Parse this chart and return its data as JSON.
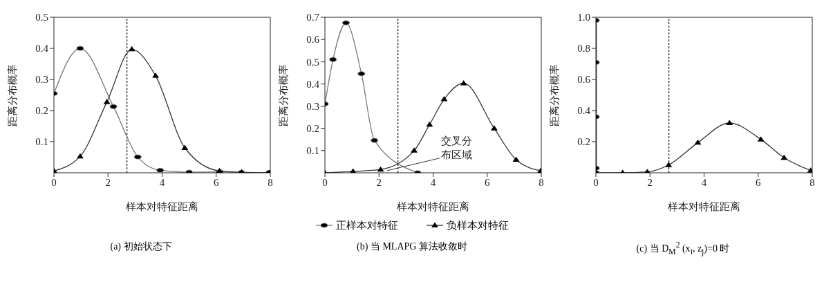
{
  "chart_data": [
    {
      "type": "line",
      "title": "(a) 初始状态下",
      "xlabel": "样本对特征距离",
      "ylabel": "距离分布概率",
      "xlim": [
        0,
        8
      ],
      "xticks": [
        0,
        2,
        4,
        6,
        8
      ],
      "ylim": [
        0,
        0.5
      ],
      "yticks": [
        0.1,
        0.2,
        0.3,
        0.4,
        0.5
      ],
      "legend": false,
      "ref_lines": [
        {
          "axis": "x",
          "value": 2.7,
          "line_style": "dashed"
        }
      ],
      "series": [
        {
          "color": "#777777",
          "marker": "circle",
          "x": [
            0,
            0.97,
            2.2,
            3.1,
            3.93,
            5.0,
            6.14,
            6.93,
            7.96
          ],
          "values": [
            0.255,
            0.4,
            0.213,
            0.051,
            0.008,
            0.002,
            0.003,
            0.001,
            0.001
          ]
        },
        {
          "color": "#333333",
          "marker": "triangle",
          "x": [
            0,
            0.97,
            1.96,
            2.88,
            3.76,
            4.84,
            6.12,
            6.94,
            7.96
          ],
          "values": [
            0.006,
            0.053,
            0.228,
            0.397,
            0.312,
            0.08,
            0.006,
            0.002,
            0
          ]
        }
      ]
    },
    {
      "type": "line",
      "title": "(b) 当 MLAPG 算法收敛时",
      "xlabel": "样本对特征距离",
      "ylabel": "距离分布概率",
      "xlim": [
        0,
        8
      ],
      "xticks": [
        0,
        2,
        4,
        6,
        8
      ],
      "ylim": [
        0,
        0.7
      ],
      "yticks": [
        0.1,
        0.2,
        0.3,
        0.4,
        0.5,
        0.6,
        0.7
      ],
      "legend": "bottom",
      "ref_lines": [
        {
          "axis": "x",
          "value": 2.7,
          "line_style": "dashed"
        }
      ],
      "annotations": [
        {
          "text": "交叉分布区域",
          "x": 2.3,
          "y": 0.01
        }
      ],
      "series": [
        {
          "name": "正样本对特征",
          "color": "#777777",
          "marker": "circle",
          "x": [
            0,
            0.3,
            0.78,
            1.35,
            1.83,
            3.43
          ],
          "values": [
            0.31,
            0.51,
            0.675,
            0.446,
            0.146,
            0
          ]
        },
        {
          "name": "负样本对特征",
          "color": "#333333",
          "marker": "triangle",
          "x": [
            0,
            1.04,
            2.06,
            3.3,
            3.87,
            4.41,
            5.13,
            6.26,
            7.07,
            7.98
          ],
          "values": [
            0,
            0.006,
            0.015,
            0.1,
            0.217,
            0.331,
            0.403,
            0.2,
            0.059,
            0.009
          ]
        }
      ]
    },
    {
      "type": "line",
      "title": "(c) 当 D$_{M}$$^{2}$ (x$_{i}$, z$_{j}$)=0 时",
      "xlabel": "样本对特征距离",
      "ylabel": "距离分布概率",
      "xlim": [
        0,
        8
      ],
      "xticks": [
        0,
        2,
        4,
        6,
        8
      ],
      "ylim": [
        0,
        1.0
      ],
      "yticks": [
        0.2,
        0.4,
        0.6,
        0.8,
        {
          "value": 1,
          "label": "1.0"
        }
      ],
      "legend": false,
      "ref_lines": [
        {
          "axis": "x",
          "value": 2.7,
          "line_style": "dashed"
        }
      ],
      "series": [
        {
          "color": "#555555",
          "marker": "circle",
          "x": [
            0,
            0,
            0,
            0,
            0
          ],
          "values": [
            0,
            0.03,
            0.36,
            0.71,
            0.98
          ]
        },
        {
          "color": "#333333",
          "marker": "triangle",
          "x": [
            0,
            0.99,
            1.9,
            2.69,
            3.77,
            4.94,
            6.1,
            6.96,
            7.94
          ],
          "values": [
            0,
            0,
            0.006,
            0.05,
            0.194,
            0.32,
            0.215,
            0.097,
            0.015
          ]
        }
      ]
    }
  ]
}
